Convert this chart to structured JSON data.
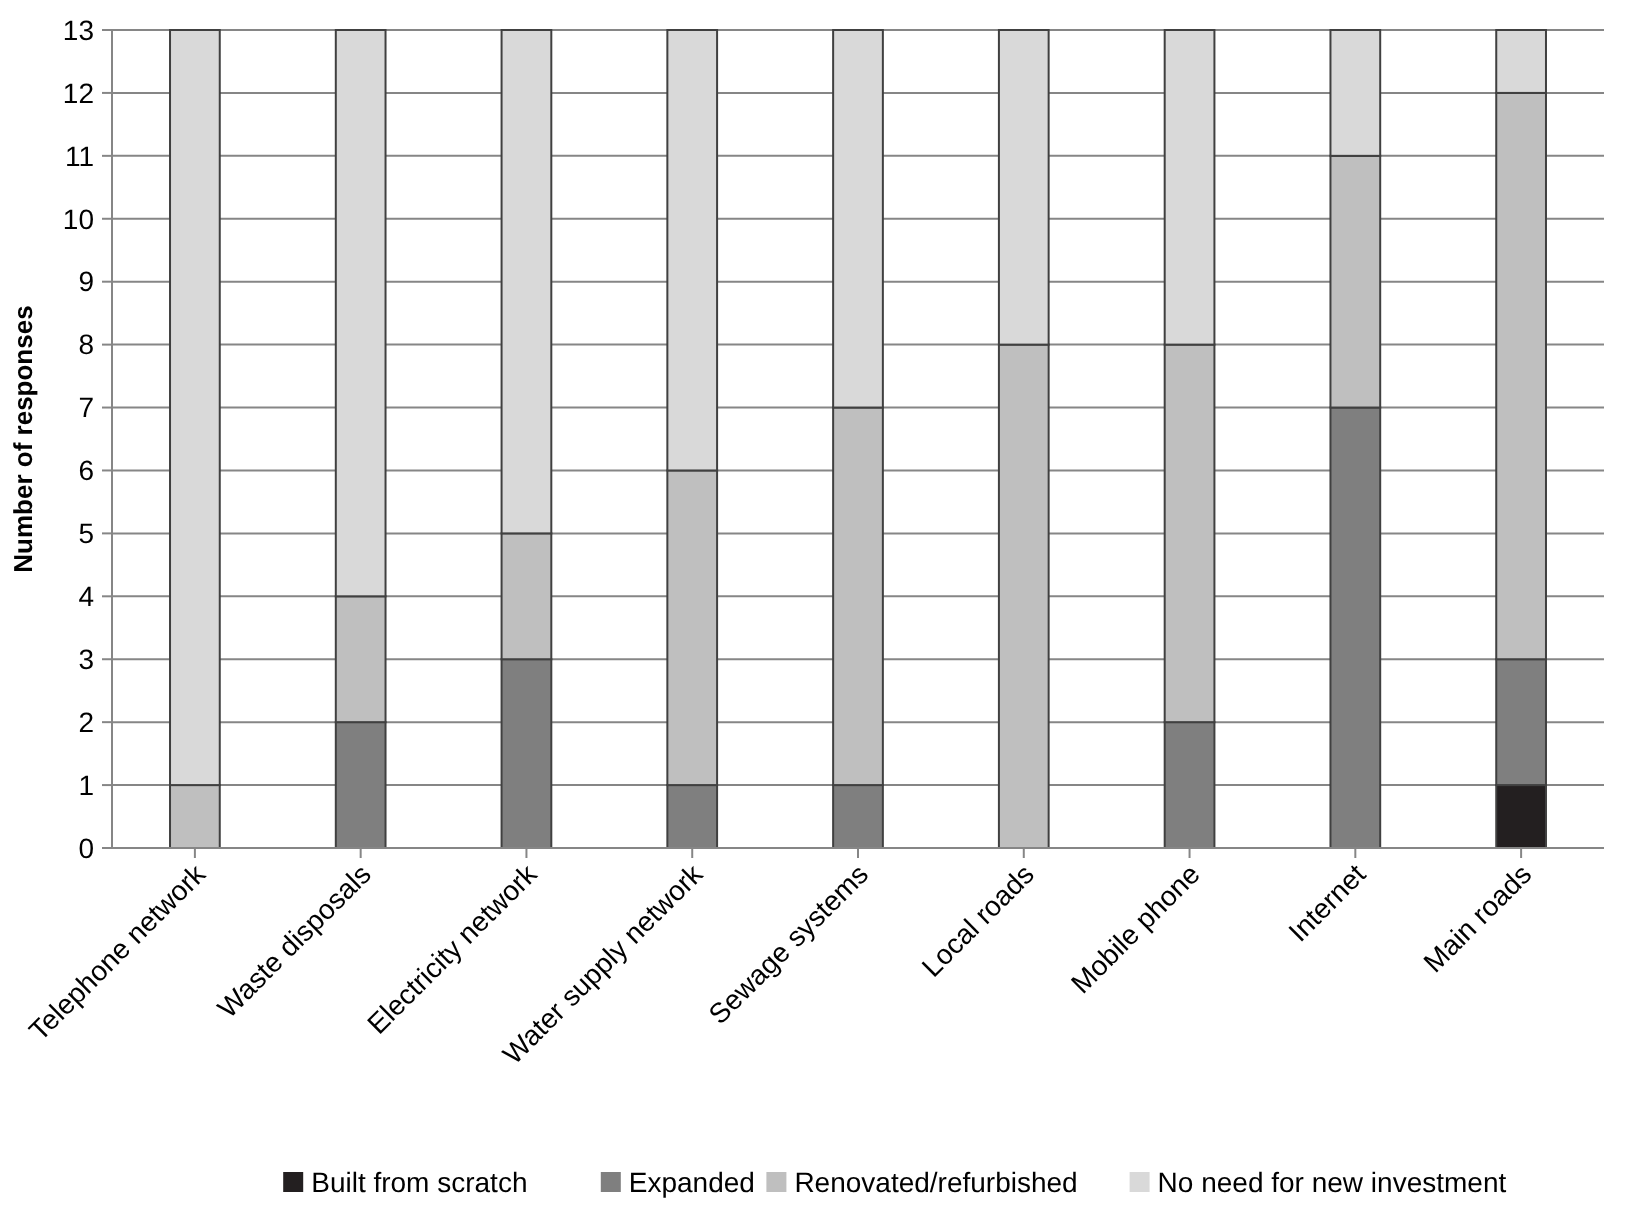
{
  "chart_data": {
    "type": "bar",
    "stacked": true,
    "ylabel": "Number of responses",
    "categories": [
      "Telephone network",
      "Waste disposals",
      "Electricity network",
      "Water supply network",
      "Sewage systems",
      "Local roads",
      "Mobile phone",
      "Internet",
      "Main roads"
    ],
    "series": [
      {
        "name": "Built from scratch",
        "color": "#231f20",
        "values": [
          0,
          0,
          0,
          0,
          0,
          0,
          0,
          0,
          1
        ]
      },
      {
        "name": "Expanded",
        "color": "#7f7f7f",
        "values": [
          0,
          2,
          3,
          1,
          1,
          0,
          2,
          7,
          2
        ]
      },
      {
        "name": "Renovated/refurbished",
        "color": "#bfbfbf",
        "values": [
          1,
          2,
          2,
          5,
          6,
          8,
          6,
          4,
          9
        ]
      },
      {
        "name": "No need for new investment",
        "color": "#d9d9d9",
        "values": [
          12,
          9,
          8,
          7,
          6,
          5,
          5,
          2,
          1
        ]
      }
    ],
    "ylim": [
      0,
      13
    ],
    "yticks": [
      0,
      1,
      2,
      3,
      4,
      5,
      6,
      7,
      8,
      9,
      10,
      11,
      12,
      13
    ],
    "grid": "y",
    "legend": "bottom"
  }
}
